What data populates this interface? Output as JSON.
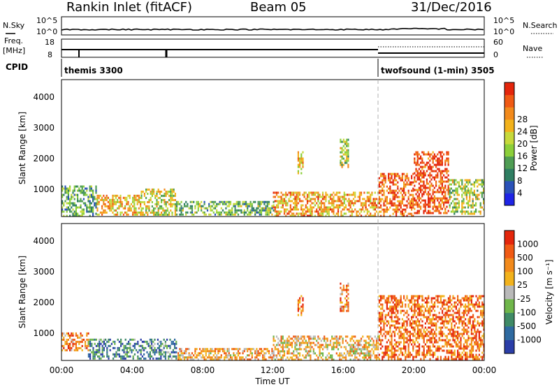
{
  "header": {
    "station": "Rankin Inlet (fitACF)",
    "beam": "Beam 05",
    "date": "31/Dec/2016"
  },
  "strips": {
    "nsky_label": "N.Sky",
    "nsky_ticks": [
      "10^5",
      "10^0"
    ],
    "nsearch_label": "N.Search",
    "nsearch_ticks": [
      "10^5",
      "10^0"
    ],
    "freq_label": "Freq.",
    "freq_unit": "[MHz]",
    "freq_ticks": [
      "18",
      "8"
    ],
    "nave_label": "Nave",
    "nave_ticks": [
      "60",
      "0"
    ],
    "cpid_label": "CPID",
    "cpid_modes": [
      {
        "label": "themis 3300"
      },
      {
        "label": "twofsound (1-min) 3505"
      }
    ]
  },
  "chart_data": [
    {
      "type": "heatmap",
      "name": "power",
      "ylabel": "Slant Range [km]",
      "y_ticks": [
        "1000",
        "2000",
        "3000",
        "4000"
      ],
      "ylim": [
        200,
        4600
      ],
      "colorbar": {
        "label": "Power [dB]",
        "ticks": [
          "4",
          "8",
          "12",
          "16",
          "20",
          "24",
          "28"
        ],
        "colors": [
          "#1e24e6",
          "#2a52b8",
          "#2f7e62",
          "#4f9d54",
          "#8ccf3a",
          "#c7d93b",
          "#f2b21c",
          "#f28a1c",
          "#f05a14",
          "#e4260c"
        ]
      },
      "regions": [
        {
          "t0": 0.0,
          "t1": 2.0,
          "r0": 250,
          "r1": 1200,
          "level": 0.35
        },
        {
          "t0": 2.0,
          "t1": 4.5,
          "r0": 250,
          "r1": 900,
          "level": 0.65
        },
        {
          "t0": 4.5,
          "t1": 6.5,
          "r0": 250,
          "r1": 1100,
          "level": 0.55
        },
        {
          "t0": 6.5,
          "t1": 12.0,
          "r0": 250,
          "r1": 700,
          "level": 0.4
        },
        {
          "t0": 12.0,
          "t1": 18.0,
          "r0": 250,
          "r1": 1000,
          "level": 0.7
        },
        {
          "t0": 13.4,
          "t1": 13.7,
          "r0": 1600,
          "r1": 2300,
          "level": 0.6
        },
        {
          "t0": 15.8,
          "t1": 16.3,
          "r0": 1800,
          "r1": 2700,
          "level": 0.5
        },
        {
          "t0": 18.0,
          "t1": 20.0,
          "r0": 250,
          "r1": 1600,
          "level": 0.85
        },
        {
          "t0": 20.0,
          "t1": 22.0,
          "r0": 300,
          "r1": 2300,
          "level": 0.9
        },
        {
          "t0": 22.0,
          "t1": 24.0,
          "r0": 300,
          "r1": 1400,
          "level": 0.5
        }
      ]
    },
    {
      "type": "heatmap",
      "name": "velocity",
      "ylabel": "Slant Range [km]",
      "y_ticks": [
        "1000",
        "2000",
        "3000",
        "4000"
      ],
      "ylim": [
        200,
        4600
      ],
      "colorbar": {
        "label": "Velocity [m s⁻¹]",
        "ticks": [
          "1000",
          "500",
          "100",
          "25",
          "-25",
          "-100",
          "-500",
          "-1000"
        ],
        "colors": [
          "#2b3ea8",
          "#2f6aa0",
          "#3f8a66",
          "#6fb64a",
          "#b9b9b9",
          "#f2b21c",
          "#f28a1c",
          "#f05a14",
          "#e4260c"
        ]
      },
      "regions": [
        {
          "t0": 0.0,
          "t1": 1.5,
          "r0": 500,
          "r1": 1100,
          "level": 0.75
        },
        {
          "t0": 1.5,
          "t1": 6.5,
          "r0": 250,
          "r1": 900,
          "level": 0.25
        },
        {
          "t0": 6.5,
          "t1": 12.0,
          "r0": 250,
          "r1": 600,
          "level": 0.65
        },
        {
          "t0": 12.0,
          "t1": 18.0,
          "r0": 250,
          "r1": 1000,
          "level": 0.6
        },
        {
          "t0": 13.4,
          "t1": 13.7,
          "r0": 1600,
          "r1": 2300,
          "level": 0.8
        },
        {
          "t0": 15.8,
          "t1": 16.3,
          "r0": 1800,
          "r1": 2700,
          "level": 0.75
        },
        {
          "t0": 18.0,
          "t1": 24.0,
          "r0": 250,
          "r1": 2300,
          "level": 0.8
        }
      ]
    }
  ],
  "x_axis": {
    "ticks": [
      "00:00",
      "04:00",
      "08:00",
      "12:00",
      "16:00",
      "20:00",
      "00:00"
    ],
    "label": "Time UT",
    "xlim_hours": [
      0,
      24
    ],
    "mode_change_hour": 18.0
  }
}
